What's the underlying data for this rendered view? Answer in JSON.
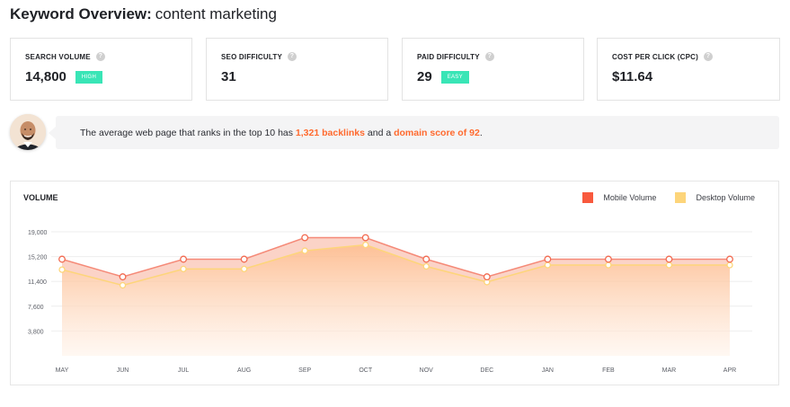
{
  "header": {
    "title_label": "Keyword Overview:",
    "keyword": "content marketing"
  },
  "metrics": [
    {
      "label": "SEARCH VOLUME",
      "value": "14,800",
      "badge": "HIGH"
    },
    {
      "label": "SEO DIFFICULTY",
      "value": "31"
    },
    {
      "label": "PAID DIFFICULTY",
      "value": "29",
      "badge": "EASY"
    },
    {
      "label": "COST PER CLICK (CPC)",
      "value": "$11.64"
    }
  ],
  "info_icon_glyph": "?",
  "insight": {
    "text_before": "The average web page that ranks in the top 10 has",
    "backlinks": "1,321 backlinks",
    "text_middle": "and a",
    "domain_score": "domain score of 92",
    "text_after": "."
  },
  "colors": {
    "accent": "#ff6a2e",
    "badge": "#39e5b6",
    "mobile": "#f8593d",
    "desktop": "#fdd57a"
  },
  "chart_data": {
    "type": "area",
    "title": "VOLUME",
    "categories": [
      "MAY",
      "JUN",
      "JUL",
      "AUG",
      "SEP",
      "OCT",
      "NOV",
      "DEC",
      "JAN",
      "FEB",
      "MAR",
      "APR"
    ],
    "y_ticks": [
      "19,000",
      "15,200",
      "11,400",
      "7,600",
      "3,800"
    ],
    "ylim": [
      0,
      19000
    ],
    "grid": true,
    "legend_position": "top-right",
    "series": [
      {
        "name": "Mobile Volume",
        "values": [
          14800,
          12100,
          14800,
          14800,
          18100,
          18100,
          14800,
          12100,
          14800,
          14800,
          14800,
          14800
        ]
      },
      {
        "name": "Desktop Volume",
        "values": [
          13200,
          10800,
          13300,
          13300,
          16100,
          17000,
          13700,
          11300,
          13900,
          13900,
          13900,
          13900
        ]
      }
    ]
  }
}
